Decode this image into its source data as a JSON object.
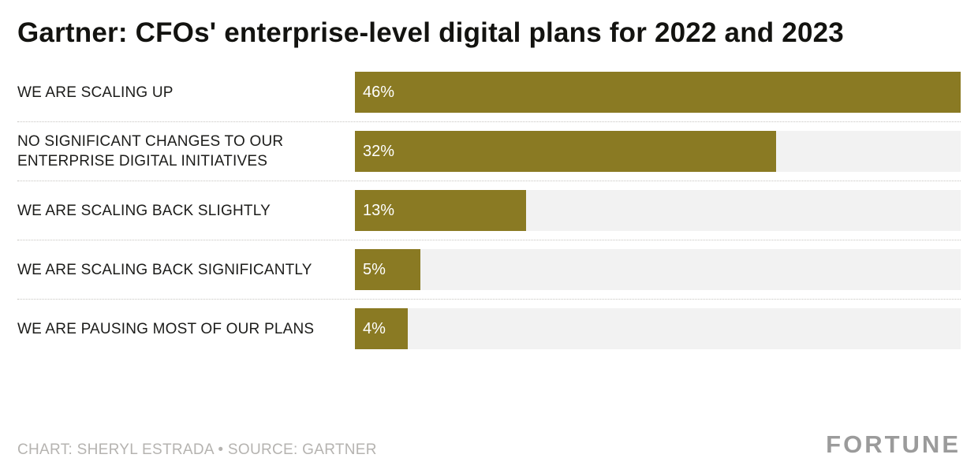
{
  "chart_data": {
    "type": "bar",
    "orientation": "horizontal",
    "title": "Gartner: CFOs' enterprise-level digital plans for 2022 and 2023",
    "categories": [
      "WE ARE SCALING UP",
      "NO SIGNIFICANT CHANGES TO OUR ENTERPRISE DIGITAL INITIATIVES",
      "WE ARE SCALING BACK SLIGHTLY",
      "WE ARE SCALING BACK SIGNIFICANTLY",
      "WE ARE PAUSING MOST OF OUR PLANS"
    ],
    "values": [
      46,
      32,
      13,
      5,
      4
    ],
    "value_labels": [
      "46%",
      "32%",
      "13%",
      "5%",
      "4%"
    ],
    "xlim": [
      0,
      46
    ],
    "bar_color": "#8a7a23",
    "track_color": "#f2f2f2",
    "grid": "dotted row separators",
    "legend": "none",
    "value_label_position": "inside-left"
  },
  "footer": {
    "credit": "CHART: SHERYL ESTRADA • SOURCE: GARTNER",
    "brand": "FORTUNE"
  }
}
